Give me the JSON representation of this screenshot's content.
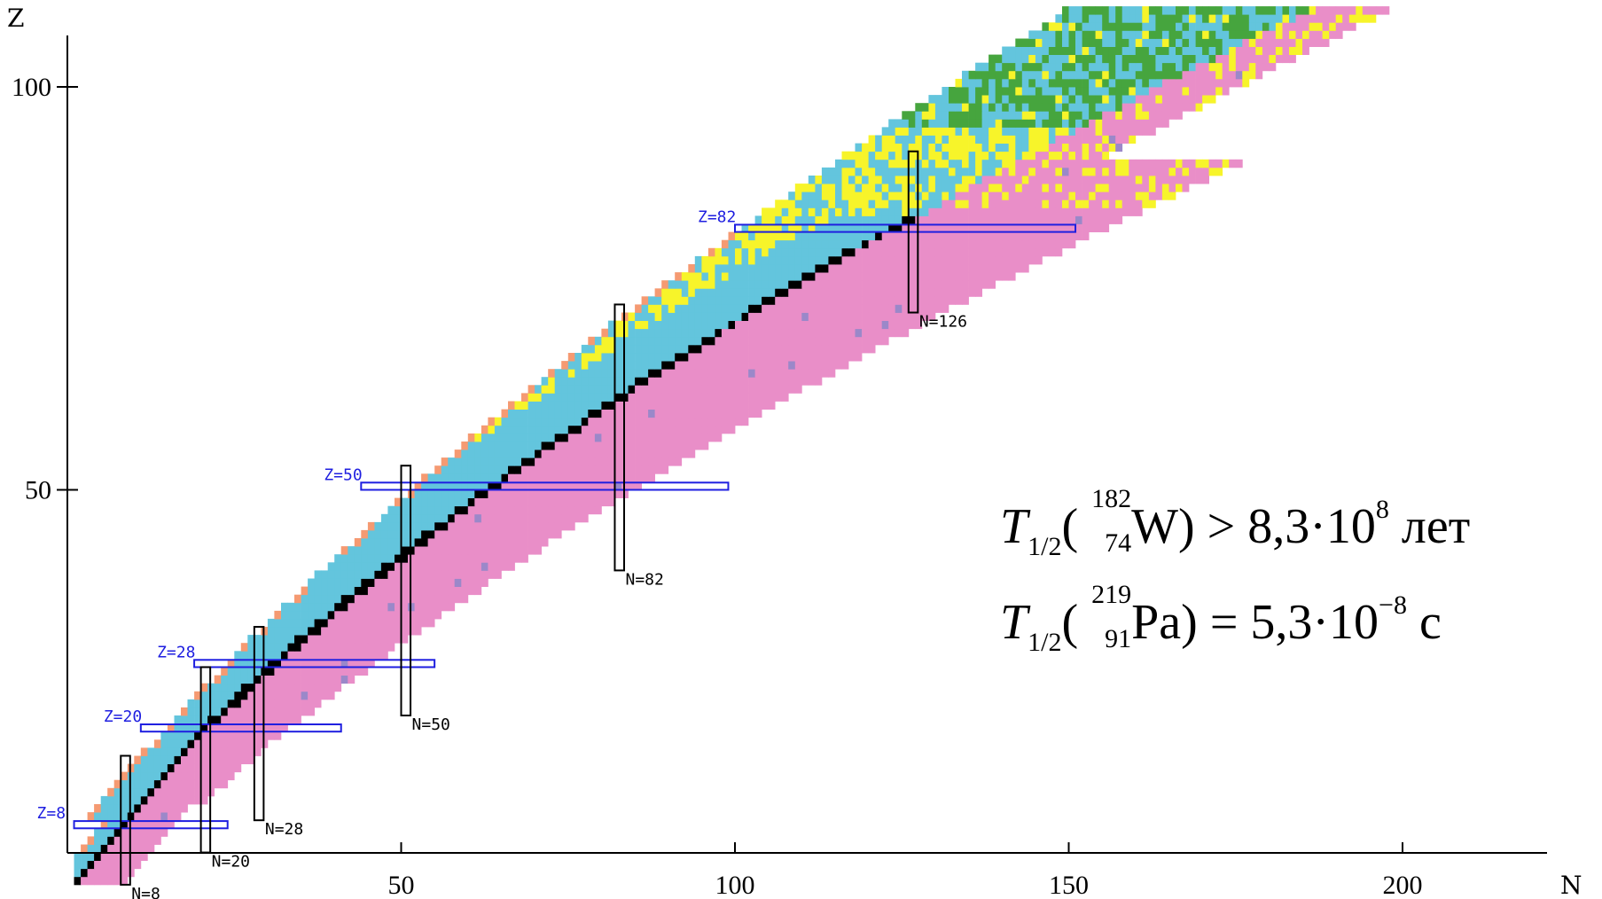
{
  "chart_data": {
    "type": "heatmap",
    "xlabel": "N",
    "ylabel": "Z",
    "xlim": [
      0,
      205
    ],
    "ylim": [
      0,
      110
    ],
    "x_ticks": [
      "50",
      "100",
      "150",
      "200"
    ],
    "y_ticks": [
      "50",
      "100"
    ],
    "x_tick_values": [
      50,
      100,
      150,
      200
    ],
    "y_tick_values": [
      50,
      100
    ],
    "magic_proton_lines": [
      {
        "label": "Z=8",
        "z": 8,
        "n_from": 1,
        "n_to": 24
      },
      {
        "label": "Z=20",
        "z": 20,
        "n_from": 11,
        "n_to": 41
      },
      {
        "label": "Z=28",
        "z": 28,
        "n_from": 19,
        "n_to": 55
      },
      {
        "label": "Z=50",
        "z": 50,
        "n_from": 44,
        "n_to": 99
      },
      {
        "label": "Z=82",
        "z": 82,
        "n_from": 100,
        "n_to": 151
      }
    ],
    "magic_neutron_lines": [
      {
        "label": "N=8",
        "n": 8,
        "z_from": 1,
        "z_to": 17
      },
      {
        "label": "N=20",
        "n": 20,
        "z_from": 5,
        "z_to": 28
      },
      {
        "label": "N=28",
        "n": 28,
        "z_from": 9,
        "z_to": 33
      },
      {
        "label": "N=50",
        "n": 50,
        "z_from": 22,
        "z_to": 53
      },
      {
        "label": "N=82",
        "n": 82,
        "z_from": 40,
        "z_to": 73
      },
      {
        "label": "N=126",
        "n": 126,
        "z_from": 72,
        "z_to": 92
      }
    ],
    "decay_colors": {
      "stable": "#000000",
      "beta_minus": "#e98ec8",
      "beta_plus_ec": "#63c5dd",
      "alpha": "#f7f42a",
      "spontaneous_fission": "#46a53e",
      "proton_emission": "#f59a72",
      "neutron_emission": "#9b88c9",
      "unknown": "#d0d0d0"
    },
    "magic_z_color": "#1f1fe0",
    "magic_n_color": "#000000"
  },
  "formulas": {
    "line1": {
      "symbol": "T",
      "subscript": "1/2",
      "mass_number": "182",
      "atomic_number": "74",
      "element": "W",
      "relation": "> 8,3·10",
      "exponent": "8",
      "unit": "лет"
    },
    "line2": {
      "symbol": "T",
      "subscript": "1/2",
      "mass_number": "219",
      "atomic_number": "91",
      "element": "Pa",
      "relation": "= 5,3·10",
      "exponent": "−8",
      "unit": "с"
    }
  }
}
